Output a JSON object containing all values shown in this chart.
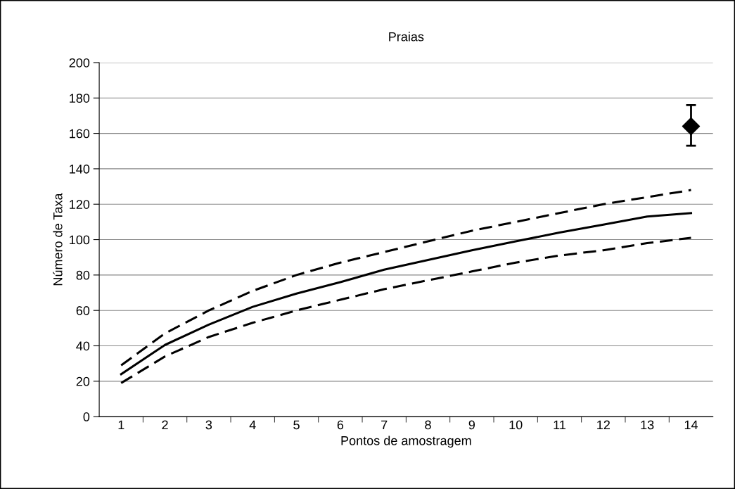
{
  "chart_data": {
    "type": "line",
    "title": "Praias",
    "xlabel": "Pontos de amostragem",
    "ylabel": "Número de Taxa",
    "categories": [
      "1",
      "2",
      "3",
      "4",
      "5",
      "6",
      "7",
      "8",
      "9",
      "10",
      "11",
      "12",
      "13",
      "14"
    ],
    "ylim": [
      0,
      200
    ],
    "yticks": [
      0,
      20,
      40,
      60,
      80,
      100,
      120,
      140,
      160,
      180,
      200
    ],
    "grid": "y",
    "series": [
      {
        "color": "#000000",
        "line_style": "dashed",
        "values": [
          29,
          47,
          60,
          71,
          80,
          87,
          93,
          99,
          105,
          110,
          115,
          120,
          124,
          128
        ]
      },
      {
        "color": "#000000",
        "line_style": "solid",
        "values": [
          24,
          40.5,
          52,
          62,
          69.5,
          76,
          83,
          88.5,
          94,
          99,
          104,
          108.5,
          113,
          115
        ]
      },
      {
        "color": "#000000",
        "line_style": "dashed",
        "values": [
          19,
          34,
          45,
          53,
          60,
          66,
          72,
          77,
          82,
          87,
          91,
          94,
          98,
          101
        ]
      },
      {
        "type": "scatter",
        "color": "#000000",
        "marker": "diamond",
        "x": [
          "14"
        ],
        "values": [
          164
        ],
        "errors": [
          [
            153,
            176
          ]
        ]
      }
    ]
  }
}
